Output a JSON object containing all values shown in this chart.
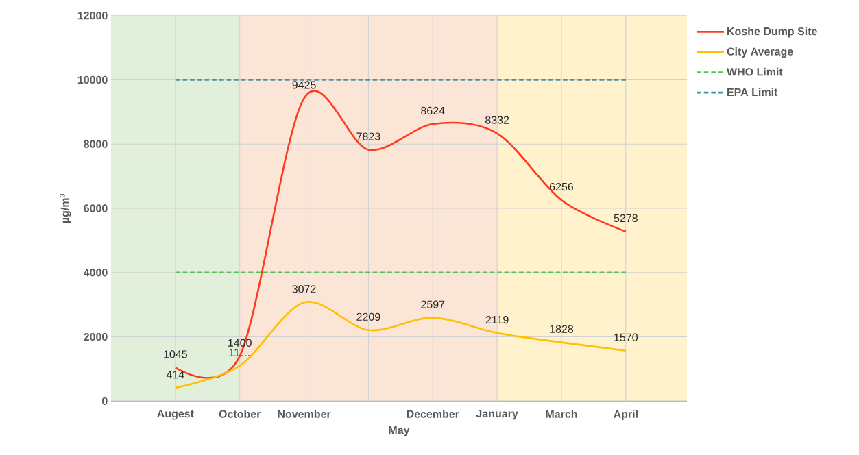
{
  "chart_data": {
    "type": "line",
    "xlabel": "May",
    "ylabel": "µg/m$^{3}$",
    "categories": [
      "Augest",
      "October",
      "November",
      null,
      "December",
      "January",
      "March",
      "April"
    ],
    "series": [
      {
        "name": "Koshe Dump Site",
        "color": "#ff3b1f",
        "values": [
          1045,
          1400,
          9425,
          7823,
          8624,
          8332,
          6256,
          5278
        ],
        "value_labels": [
          "1045",
          "1400",
          "9425",
          "7823",
          "8624",
          "8332",
          "6256",
          "5278"
        ]
      },
      {
        "name": "City Average",
        "color": "#ffc000",
        "values": [
          414,
          1100,
          3072,
          2209,
          2597,
          2119,
          1828,
          1570
        ],
        "value_labels": [
          "414",
          "11…",
          "3072",
          "2209",
          "2597",
          "2119",
          "1828",
          "1570"
        ]
      },
      {
        "name": "WHO Limit",
        "color": "#55c155",
        "line_style": "dashed",
        "values": [
          4000,
          4000,
          4000,
          4000,
          4000,
          4000,
          4000,
          4000
        ]
      },
      {
        "name": "EPA Limit",
        "color": "#4a8fab",
        "line_style": "dashed",
        "values": [
          10000,
          10000,
          10000,
          10000,
          10000,
          10000,
          10000,
          10000
        ]
      }
    ],
    "ylim": [
      0,
      12000
    ],
    "yticks": [
      0,
      2000,
      4000,
      6000,
      8000,
      10000,
      12000
    ],
    "grid": true,
    "legend": "top right"
  }
}
